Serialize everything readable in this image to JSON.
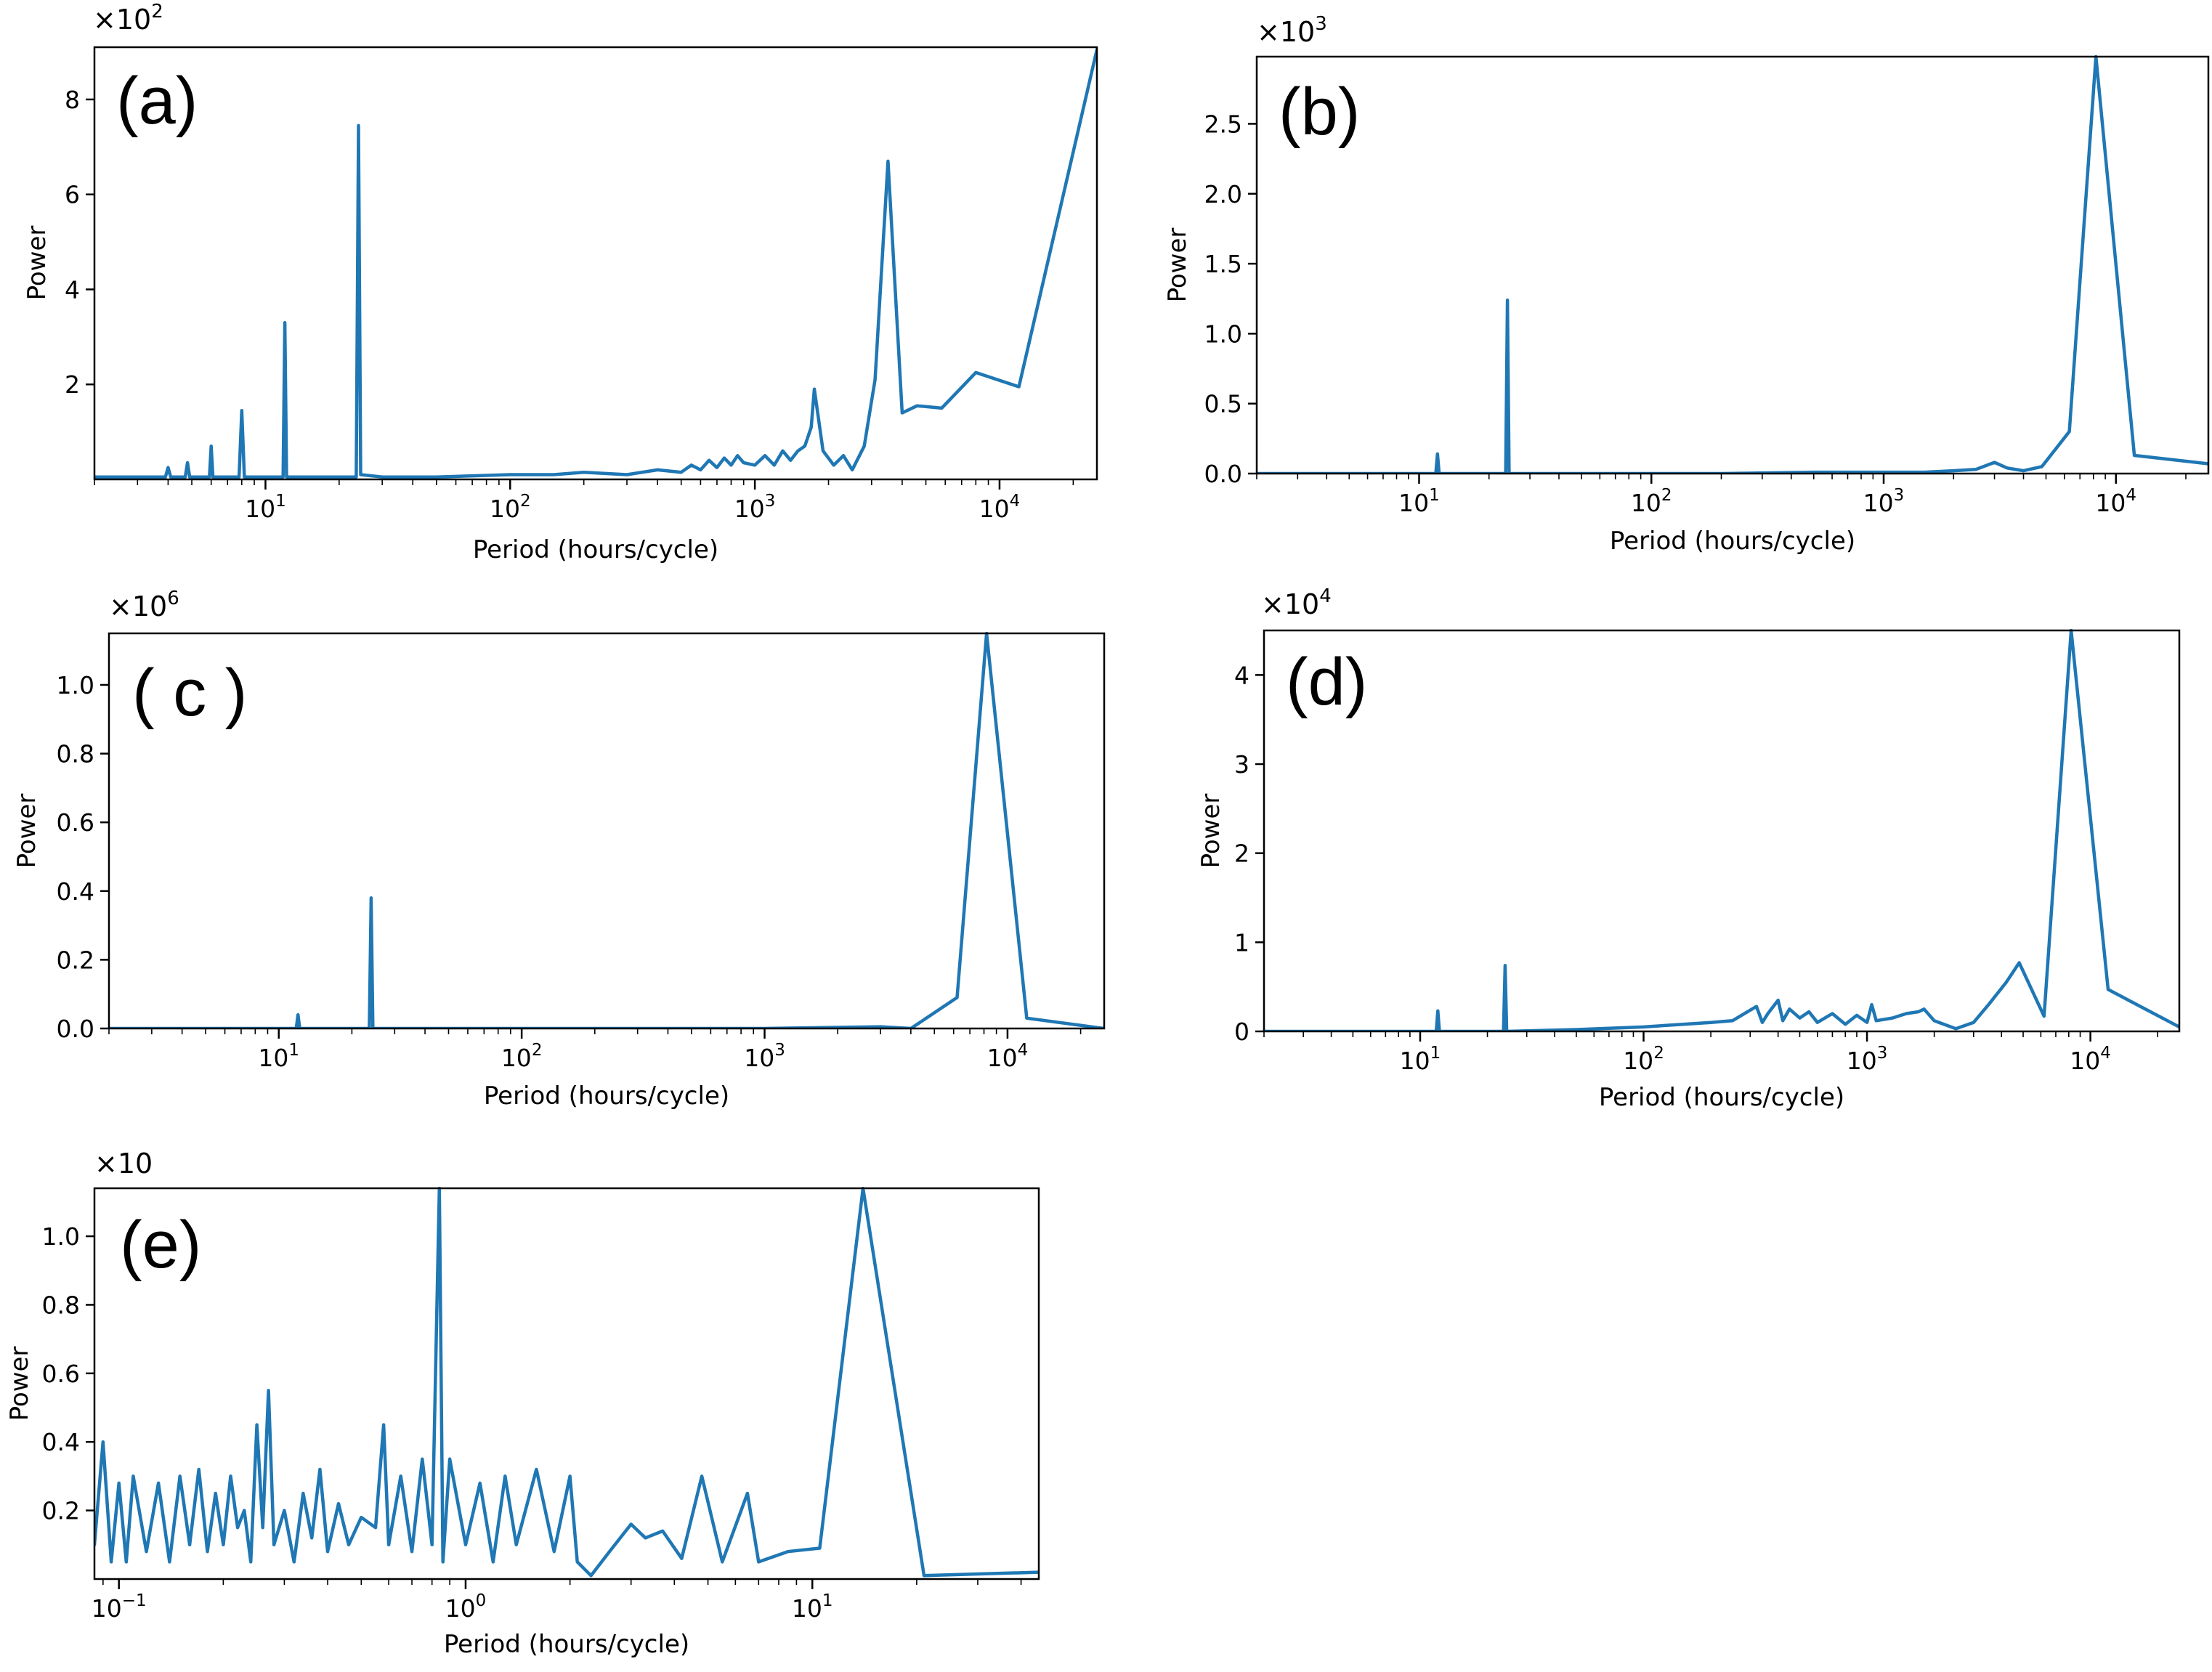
{
  "chart_data": [
    {
      "id": "a",
      "type": "line",
      "panel_label": "(a)",
      "xlabel": "Period (hours/cycle)",
      "ylabel": "Power",
      "multiplier": "×10",
      "multiplier_exp": "2",
      "xscale": "log",
      "xlim": [
        2,
        25000
      ],
      "ylim": [
        0,
        9.1
      ],
      "xticks": [
        {
          "value": 10,
          "base": "10",
          "exp": "1"
        },
        {
          "value": 100,
          "base": "10",
          "exp": "2"
        },
        {
          "value": 1000,
          "base": "10",
          "exp": "3"
        },
        {
          "value": 10000,
          "base": "10",
          "exp": "4"
        }
      ],
      "yticks": [
        {
          "value": 2,
          "label": "2"
        },
        {
          "value": 4,
          "label": "4"
        },
        {
          "value": 6,
          "label": "6"
        },
        {
          "value": 8,
          "label": "8"
        }
      ],
      "series": [
        {
          "name": "power",
          "x": [
            2,
            3,
            3.9,
            4,
            4.1,
            4.7,
            4.8,
            4.9,
            5.9,
            6,
            6.1,
            7.8,
            8,
            8.2,
            11.8,
            12,
            12.2,
            23.5,
            24,
            24.5,
            30,
            50,
            100,
            150,
            200,
            300,
            400,
            500,
            550,
            600,
            650,
            700,
            750,
            800,
            850,
            900,
            1000,
            1100,
            1200,
            1300,
            1400,
            1500,
            1600,
            1700,
            1750,
            1900,
            2100,
            2300,
            2500,
            2800,
            3100,
            3500,
            4000,
            4600,
            5800,
            8000,
            12000,
            25000
          ],
          "y": [
            0.05,
            0.05,
            0.05,
            0.25,
            0.05,
            0.05,
            0.35,
            0.05,
            0.05,
            0.7,
            0.05,
            0.05,
            1.45,
            0.05,
            0.05,
            3.3,
            0.05,
            0.05,
            7.45,
            0.1,
            0.05,
            0.05,
            0.1,
            0.1,
            0.15,
            0.1,
            0.2,
            0.15,
            0.3,
            0.2,
            0.4,
            0.25,
            0.45,
            0.3,
            0.5,
            0.35,
            0.3,
            0.5,
            0.3,
            0.6,
            0.4,
            0.6,
            0.7,
            1.1,
            1.9,
            0.6,
            0.3,
            0.5,
            0.2,
            0.7,
            2.1,
            6.7,
            1.4,
            1.55,
            1.5,
            2.25,
            1.95,
            9.05
          ]
        }
      ]
    },
    {
      "id": "b",
      "type": "line",
      "panel_label": "(b)",
      "xlabel": "Period (hours/cycle)",
      "ylabel": "Power",
      "multiplier": "×10",
      "multiplier_exp": "3",
      "xscale": "log",
      "xlim": [
        2,
        25000
      ],
      "ylim": [
        0,
        2.98
      ],
      "xticks": [
        {
          "value": 10,
          "base": "10",
          "exp": "1"
        },
        {
          "value": 100,
          "base": "10",
          "exp": "2"
        },
        {
          "value": 1000,
          "base": "10",
          "exp": "3"
        },
        {
          "value": 10000,
          "base": "10",
          "exp": "4"
        }
      ],
      "yticks": [
        {
          "value": 0,
          "label": "0.0"
        },
        {
          "value": 0.5,
          "label": "0.5"
        },
        {
          "value": 1.0,
          "label": "1.0"
        },
        {
          "value": 1.5,
          "label": "1.5"
        },
        {
          "value": 2.0,
          "label": "2.0"
        },
        {
          "value": 2.5,
          "label": "2.5"
        }
      ],
      "series": [
        {
          "name": "power",
          "x": [
            2,
            11.8,
            12,
            12.2,
            23.6,
            24,
            24.4,
            200,
            500,
            1000,
            1500,
            2000,
            2500,
            3000,
            3400,
            4000,
            4800,
            6300,
            8200,
            12000,
            25000
          ],
          "y": [
            0.0,
            0.0,
            0.14,
            0.0,
            0.0,
            1.24,
            0.0,
            0.0,
            0.01,
            0.01,
            0.01,
            0.02,
            0.03,
            0.08,
            0.04,
            0.02,
            0.05,
            0.3,
            2.98,
            0.13,
            0.07
          ]
        }
      ]
    },
    {
      "id": "c",
      "type": "line",
      "panel_label": "( c )",
      "xlabel": "Period (hours/cycle)",
      "ylabel": "Power",
      "multiplier": "×10",
      "multiplier_exp": "6",
      "xscale": "log",
      "xlim": [
        2,
        25000
      ],
      "ylim": [
        0,
        1.15
      ],
      "xticks": [
        {
          "value": 10,
          "base": "10",
          "exp": "1"
        },
        {
          "value": 100,
          "base": "10",
          "exp": "2"
        },
        {
          "value": 1000,
          "base": "10",
          "exp": "3"
        },
        {
          "value": 10000,
          "base": "10",
          "exp": "4"
        }
      ],
      "yticks": [
        {
          "value": 0,
          "label": "0.0"
        },
        {
          "value": 0.2,
          "label": "0.2"
        },
        {
          "value": 0.4,
          "label": "0.4"
        },
        {
          "value": 0.6,
          "label": "0.6"
        },
        {
          "value": 0.8,
          "label": "0.8"
        },
        {
          "value": 1.0,
          "label": "1.0"
        }
      ],
      "series": [
        {
          "name": "power",
          "x": [
            2,
            11.8,
            12,
            12.2,
            23.6,
            24,
            24.4,
            1000,
            3000,
            4000,
            6200,
            8200,
            12000,
            25000
          ],
          "y": [
            0.0,
            0.0,
            0.04,
            0.0,
            0.0,
            0.38,
            0.0,
            0.0,
            0.005,
            0.0,
            0.09,
            1.15,
            0.03,
            0.0
          ]
        }
      ]
    },
    {
      "id": "d",
      "type": "line",
      "panel_label": "(d)",
      "xlabel": "Period (hours/cycle)",
      "ylabel": "Power",
      "multiplier": "×10",
      "multiplier_exp": "4",
      "xscale": "log",
      "xlim": [
        2,
        25000
      ],
      "ylim": [
        0,
        4.5
      ],
      "xticks": [
        {
          "value": 10,
          "base": "10",
          "exp": "1"
        },
        {
          "value": 100,
          "base": "10",
          "exp": "2"
        },
        {
          "value": 1000,
          "base": "10",
          "exp": "3"
        },
        {
          "value": 10000,
          "base": "10",
          "exp": "4"
        }
      ],
      "yticks": [
        {
          "value": 0,
          "label": "0"
        },
        {
          "value": 1,
          "label": "1"
        },
        {
          "value": 2,
          "label": "2"
        },
        {
          "value": 3,
          "label": "3"
        },
        {
          "value": 4,
          "label": "4"
        }
      ],
      "series": [
        {
          "name": "power",
          "x": [
            2,
            11.8,
            12,
            12.2,
            23.6,
            24,
            24.4,
            50,
            100,
            150,
            200,
            250,
            320,
            340,
            360,
            400,
            420,
            450,
            500,
            550,
            600,
            700,
            800,
            900,
            1000,
            1050,
            1100,
            1300,
            1500,
            1700,
            1800,
            2000,
            2500,
            3000,
            3500,
            4200,
            4800,
            6200,
            8200,
            12000,
            25000
          ],
          "y": [
            0.0,
            0.0,
            0.23,
            0.0,
            0.0,
            0.74,
            0.0,
            0.02,
            0.05,
            0.08,
            0.1,
            0.12,
            0.28,
            0.1,
            0.2,
            0.35,
            0.12,
            0.25,
            0.15,
            0.22,
            0.1,
            0.2,
            0.08,
            0.18,
            0.1,
            0.3,
            0.12,
            0.15,
            0.2,
            0.22,
            0.25,
            0.12,
            0.03,
            0.1,
            0.3,
            0.55,
            0.77,
            0.17,
            4.5,
            0.47,
            0.05
          ]
        }
      ]
    },
    {
      "id": "e",
      "type": "line",
      "panel_label": "(e)",
      "xlabel": "Period (hours/cycle)",
      "ylabel": "Power",
      "multiplier": "×10",
      "multiplier_exp": "",
      "xscale": "log",
      "xlim": [
        0.085,
        45
      ],
      "ylim": [
        0,
        1.14
      ],
      "xticks": [
        {
          "value": 0.1,
          "base": "10",
          "exp": "−1"
        },
        {
          "value": 1,
          "base": "10",
          "exp": "0"
        },
        {
          "value": 10,
          "base": "10",
          "exp": "1"
        }
      ],
      "yticks": [
        {
          "value": 0.2,
          "label": "0.2"
        },
        {
          "value": 0.4,
          "label": "0.4"
        },
        {
          "value": 0.6,
          "label": "0.6"
        },
        {
          "value": 0.8,
          "label": "0.8"
        },
        {
          "value": 1.0,
          "label": "1.0"
        }
      ],
      "series": [
        {
          "name": "power",
          "x": [
            0.085,
            0.09,
            0.095,
            0.1,
            0.105,
            0.11,
            0.12,
            0.13,
            0.14,
            0.15,
            0.16,
            0.17,
            0.18,
            0.19,
            0.2,
            0.21,
            0.22,
            0.23,
            0.24,
            0.25,
            0.26,
            0.27,
            0.28,
            0.3,
            0.32,
            0.34,
            0.36,
            0.38,
            0.4,
            0.43,
            0.46,
            0.5,
            0.55,
            0.58,
            0.6,
            0.65,
            0.7,
            0.75,
            0.8,
            0.84,
            0.86,
            0.9,
            1.0,
            1.1,
            1.2,
            1.3,
            1.4,
            1.6,
            1.8,
            2.0,
            2.1,
            2.3,
            2.6,
            3.0,
            3.3,
            3.7,
            4.2,
            4.8,
            5.5,
            6.5,
            7.0,
            8.5,
            10.5,
            14.0,
            21.0,
            45.0
          ],
          "y": [
            0.1,
            0.4,
            0.05,
            0.28,
            0.05,
            0.3,
            0.08,
            0.28,
            0.05,
            0.3,
            0.1,
            0.32,
            0.08,
            0.25,
            0.1,
            0.3,
            0.15,
            0.2,
            0.05,
            0.45,
            0.15,
            0.55,
            0.1,
            0.2,
            0.05,
            0.25,
            0.12,
            0.32,
            0.08,
            0.22,
            0.1,
            0.18,
            0.15,
            0.45,
            0.1,
            0.3,
            0.08,
            0.35,
            0.1,
            1.14,
            0.05,
            0.35,
            0.1,
            0.28,
            0.05,
            0.3,
            0.1,
            0.32,
            0.08,
            0.3,
            0.05,
            0.01,
            0.08,
            0.16,
            0.12,
            0.14,
            0.06,
            0.3,
            0.05,
            0.25,
            0.05,
            0.08,
            0.09,
            1.14,
            0.01,
            0.02
          ]
        }
      ]
    }
  ]
}
